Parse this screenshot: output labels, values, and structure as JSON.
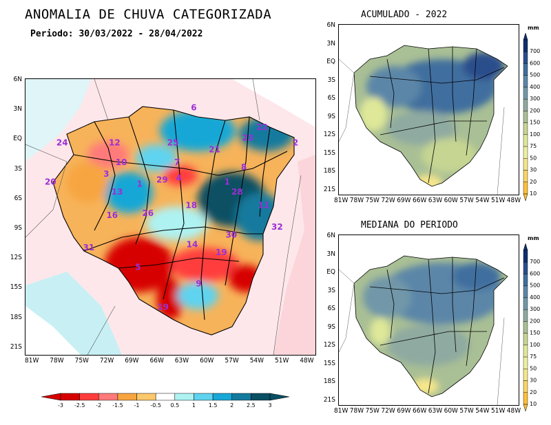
{
  "title": "ANOMALIA DE CHUVA CATEGORIZADA",
  "period": "Periodo: 30/03/2022 - 28/04/2022",
  "main_map": {
    "lat_ticks": [
      "6N",
      "3N",
      "EQ",
      "3S",
      "6S",
      "9S",
      "12S",
      "15S",
      "18S",
      "21S"
    ],
    "lon_ticks": [
      "81W",
      "78W",
      "75W",
      "72W",
      "69W",
      "66W",
      "63W",
      "60W",
      "57W",
      "54W",
      "51W",
      "48W"
    ],
    "basins": [
      {
        "id": "6",
        "lon": -62.0,
        "lat": 2.8
      },
      {
        "id": "22",
        "lon": -53.8,
        "lat": 0.8
      },
      {
        "id": "24",
        "lon": -77.8,
        "lat": -0.8
      },
      {
        "id": "12",
        "lon": -71.5,
        "lat": -0.8
      },
      {
        "id": "25",
        "lon": -64.5,
        "lat": -0.8
      },
      {
        "id": "23",
        "lon": -55.5,
        "lat": -0.3
      },
      {
        "id": "2",
        "lon": -49.8,
        "lat": -0.8
      },
      {
        "id": "21",
        "lon": -59.5,
        "lat": -1.5
      },
      {
        "id": "10",
        "lon": -70.7,
        "lat": -2.8
      },
      {
        "id": "7",
        "lon": -64.0,
        "lat": -2.8
      },
      {
        "id": "8",
        "lon": -56.0,
        "lat": -3.3
      },
      {
        "id": "20",
        "lon": -79.2,
        "lat": -4.8
      },
      {
        "id": "3",
        "lon": -72.5,
        "lat": -4.0
      },
      {
        "id": "1",
        "lon": -68.5,
        "lat": -5.0
      },
      {
        "id": "29",
        "lon": -65.8,
        "lat": -4.6
      },
      {
        "id": "4",
        "lon": -63.8,
        "lat": -4.4
      },
      {
        "id": "1",
        "lon": -58.0,
        "lat": -4.8
      },
      {
        "id": "13",
        "lon": -71.2,
        "lat": -5.8
      },
      {
        "id": "28",
        "lon": -56.8,
        "lat": -5.8
      },
      {
        "id": "18",
        "lon": -62.3,
        "lat": -7.2
      },
      {
        "id": "11",
        "lon": -53.6,
        "lat": -7.2
      },
      {
        "id": "16",
        "lon": -71.8,
        "lat": -8.2
      },
      {
        "id": "26",
        "lon": -67.5,
        "lat": -8.0
      },
      {
        "id": "32",
        "lon": -52.0,
        "lat": -9.4
      },
      {
        "id": "30",
        "lon": -57.5,
        "lat": -10.2
      },
      {
        "id": "31",
        "lon": -74.6,
        "lat": -11.5
      },
      {
        "id": "14",
        "lon": -62.2,
        "lat": -11.2
      },
      {
        "id": "19",
        "lon": -58.7,
        "lat": -12.0
      },
      {
        "id": "5",
        "lon": -68.7,
        "lat": -13.5
      },
      {
        "id": "9",
        "lon": -61.4,
        "lat": -15.2
      },
      {
        "id": "19",
        "lon": -65.7,
        "lat": -17.6
      }
    ]
  },
  "colorbar": {
    "labels": [
      "-3",
      "-2.5",
      "-2",
      "-1.5",
      "-1",
      "-0.5",
      "0.5",
      "1",
      "1.5",
      "2",
      "2.5",
      "3"
    ],
    "colors": [
      "#d70000",
      "#ff3c3c",
      "#ff7a7a",
      "#f7a53f",
      "#fbc86b",
      "#fde2a8",
      "#ffffff",
      "#aef2f2",
      "#5fd3ef",
      "#18a7d6",
      "#137a9e",
      "#0a4f63"
    ]
  },
  "map_acumulado": {
    "title": "ACUMULADO - 2022",
    "lat_ticks": [
      "6N",
      "3N",
      "EQ",
      "3S",
      "6S",
      "9S",
      "12S",
      "15S",
      "18S",
      "21S"
    ],
    "lon_ticks": [
      "81W",
      "78W",
      "75W",
      "72W",
      "69W",
      "66W",
      "63W",
      "60W",
      "57W",
      "54W",
      "51W",
      "48W"
    ]
  },
  "map_mediana": {
    "title": "MEDIANA DO PERIODO",
    "lat_ticks": [
      "6N",
      "3N",
      "EQ",
      "3S",
      "6S",
      "9S",
      "12S",
      "15S",
      "18S",
      "21S"
    ],
    "lon_ticks": [
      "81W",
      "78W",
      "75W",
      "72W",
      "69W",
      "66W",
      "63W",
      "60W",
      "57W",
      "54W",
      "51W",
      "48W"
    ]
  },
  "mm_colorbar": {
    "unit": "mm",
    "labels": [
      "700",
      "600",
      "500",
      "400",
      "300",
      "200",
      "150",
      "100",
      "75",
      "50",
      "30",
      "20",
      "10"
    ],
    "colors": [
      "#0f2f6e",
      "#2a4e8c",
      "#3f6e9f",
      "#5b86a8",
      "#7197a9",
      "#8faaa0",
      "#a9bf95",
      "#c6d592",
      "#dfe898",
      "#edf0a3",
      "#f5e68a",
      "#fbd465",
      "#fcbf3a"
    ]
  }
}
